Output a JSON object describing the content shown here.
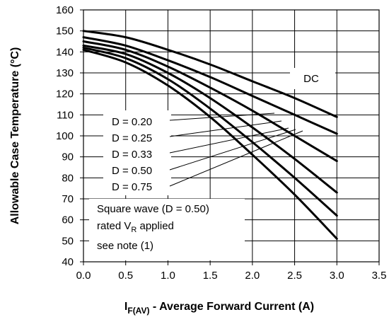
{
  "chart_data": {
    "type": "line",
    "xlabel_main": "I",
    "xlabel_sub": "F(AV)",
    "xlabel_rest": " - Average Forward Current (A)",
    "ylabel": "Allowable Case Temperature (°C)",
    "xlim": [
      0,
      3.5
    ],
    "ylim": [
      40,
      160
    ],
    "x_ticks": [
      "0.0",
      "0.5",
      "1.0",
      "1.5",
      "2.0",
      "2.5",
      "3.0",
      "3.5"
    ],
    "y_ticks": [
      "40",
      "50",
      "60",
      "70",
      "80",
      "90",
      "100",
      "110",
      "120",
      "130",
      "140",
      "150",
      "160"
    ],
    "grid": true,
    "series": [
      {
        "name": "DC",
        "x": [
          0,
          0.5,
          1.0,
          1.5,
          2.0,
          2.5,
          3.0
        ],
        "y": [
          150,
          147,
          141,
          134,
          126,
          118,
          109
        ]
      },
      {
        "name": "D = 0.20",
        "x": [
          0,
          0.5,
          1.0,
          1.5,
          2.0,
          2.5,
          3.0
        ],
        "y": [
          147,
          143,
          136,
          128,
          119,
          110,
          101
        ]
      },
      {
        "name": "D = 0.25",
        "x": [
          0,
          0.5,
          1.0,
          1.5,
          2.0,
          2.5,
          3.0
        ],
        "y": [
          145,
          141,
          133,
          123,
          112,
          100,
          88
        ]
      },
      {
        "name": "D = 0.33",
        "x": [
          0,
          0.5,
          1.0,
          1.5,
          2.0,
          2.5,
          3.0
        ],
        "y": [
          143,
          139,
          130,
          118,
          104,
          89,
          73
        ]
      },
      {
        "name": "D = 0.50",
        "x": [
          0,
          0.5,
          1.0,
          1.5,
          2.0,
          2.5,
          3.0
        ],
        "y": [
          142,
          137,
          127,
          113,
          97,
          80,
          62
        ]
      },
      {
        "name": "D = 0.75",
        "x": [
          0,
          0.5,
          1.0,
          1.5,
          2.0,
          2.5,
          3.0
        ],
        "y": [
          141,
          135,
          124,
          109,
          91,
          72,
          51
        ]
      }
    ],
    "labels": {
      "dc": "DC",
      "d020": "D = 0.20",
      "d025": "D = 0.25",
      "d033": "D = 0.33",
      "d050": "D = 0.50",
      "d075": "D = 0.75"
    },
    "note": {
      "line1": "Square wave (D = 0.50)",
      "line2_main": "rated V",
      "line2_sub": "R",
      "line2_rest": " applied",
      "line3": "see note (1)"
    }
  }
}
